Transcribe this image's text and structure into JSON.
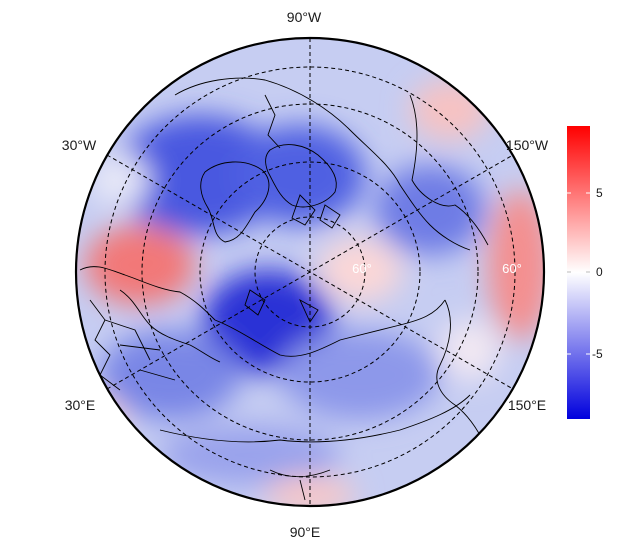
{
  "map": {
    "projection": "north-polar-stereographic",
    "longitude_labels": {
      "top": "90°W",
      "upper_left": "30°W",
      "upper_right": "150°W",
      "lower_left": "30°E",
      "lower_right": "150°E",
      "bottom": "90°E"
    },
    "latitude_labels": [
      "60°",
      "60°"
    ],
    "graticule_style": "dashed"
  },
  "colorbar": {
    "ticks": [
      "5",
      "0",
      "-5"
    ],
    "range": [
      -9,
      9
    ],
    "colors": {
      "max": "#ff0000",
      "mid": "#ffffff",
      "min": "#0000dd"
    }
  }
}
